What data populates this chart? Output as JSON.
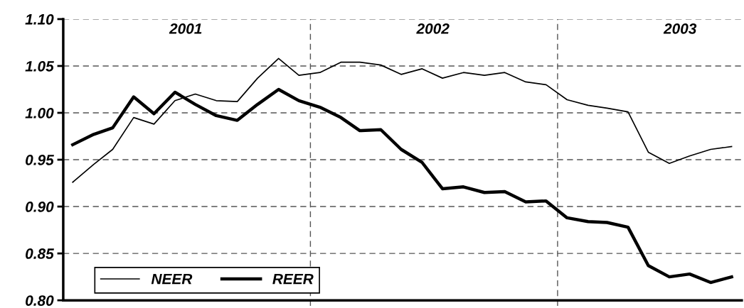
{
  "chart_data": {
    "type": "line",
    "x": [
      "2001-01-15",
      "2001-02-15",
      "2001-03-15",
      "2001-04-15",
      "2001-05-15",
      "2001-06-15",
      "2001-07-15",
      "2001-08-15",
      "2001-09-15",
      "2001-10-15",
      "2001-11-15",
      "2001-12-15",
      "2002-01-15",
      "2002-02-15",
      "2002-03-15",
      "2002-04-15",
      "2002-05-15",
      "2002-06-15",
      "2002-07-15",
      "2002-08-15",
      "2002-09-15",
      "2002-10-15",
      "2002-11-15",
      "2002-12-15",
      "2003-01-15",
      "2003-02-15",
      "2003-03-15",
      "2003-04-15",
      "2003-05-15",
      "2003-06-15",
      "2003-07-15",
      "2003-08-15",
      "2003-09-15"
    ],
    "series": [
      {
        "name": "NEER",
        "color": "#000000",
        "values": [
          0.926,
          0.945,
          0.961,
          0.995,
          0.988,
          1.013,
          1.02,
          1.013,
          1.012,
          1.037,
          1.058,
          1.04,
          1.043,
          1.054,
          1.054,
          1.051,
          1.041,
          1.047,
          1.037,
          1.043,
          1.04,
          1.043,
          1.033,
          1.03,
          1.014,
          1.008,
          1.005,
          1.001,
          0.958,
          0.946,
          0.954,
          0.961,
          0.964
        ]
      },
      {
        "name": "REER",
        "color": "#000000",
        "values": [
          0.966,
          0.977,
          0.984,
          1.017,
          0.999,
          1.022,
          1.009,
          0.997,
          0.992,
          1.009,
          1.025,
          1.013,
          1.006,
          0.995,
          0.981,
          0.982,
          0.961,
          0.947,
          0.919,
          0.921,
          0.915,
          0.916,
          0.905,
          0.906,
          0.888,
          0.884,
          0.883,
          0.878,
          0.837,
          0.825,
          0.828,
          0.819,
          0.825
        ]
      }
    ],
    "xlim": [
      "2001-01-01",
      "2003-09-30"
    ],
    "xticks": [
      {
        "value": "2001-07-01",
        "label": "2001"
      },
      {
        "value": "2002-07-01",
        "label": "2002"
      },
      {
        "value": "2003-07-01",
        "label": "2003"
      }
    ],
    "ref_lines": [
      {
        "axis": "x",
        "value": "2002-01-01",
        "line_style": "dashed",
        "color": "#555555"
      },
      {
        "axis": "x",
        "value": "2003-01-01",
        "line_style": "dashed",
        "color": "#555555"
      }
    ],
    "ylim": [
      0.8,
      1.1
    ],
    "yticks": [
      {
        "value": 0.8,
        "label": "0.80"
      },
      {
        "value": 0.85,
        "label": "0.85"
      },
      {
        "value": 0.9,
        "label": "0.90"
      },
      {
        "value": 0.95,
        "label": "0.95"
      },
      {
        "value": 1.0,
        "label": "1.00"
      },
      {
        "value": 1.05,
        "label": "1.05"
      },
      {
        "value": 1.1,
        "label": "1.10"
      }
    ],
    "grid": "y",
    "legend": "bottom left",
    "marker": "none",
    "line_style": "solid"
  }
}
